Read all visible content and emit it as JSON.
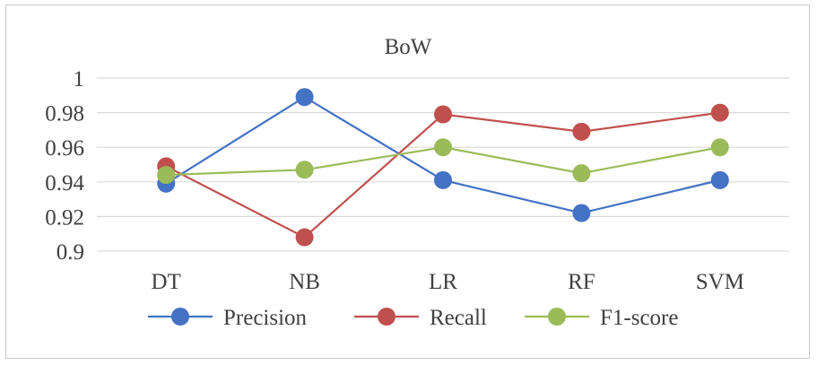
{
  "chart_data": {
    "type": "line",
    "title": "BoW",
    "categories": [
      "DT",
      "NB",
      "LR",
      "RF",
      "SVM"
    ],
    "ylim": [
      0.9,
      1
    ],
    "yticks": [
      0.9,
      0.92,
      0.94,
      0.96,
      0.98,
      1
    ],
    "ytick_labels": [
      "0.9",
      "0.92",
      "0.94",
      "0.96",
      "0.98",
      "1"
    ],
    "grid": true,
    "legend_position": "bottom",
    "series": [
      {
        "name": "Precision",
        "values": [
          0.939,
          0.989,
          0.941,
          0.922,
          0.941
        ],
        "color": "#4472C4"
      },
      {
        "name": "Recall",
        "values": [
          0.949,
          0.908,
          0.979,
          0.969,
          0.98
        ],
        "color": "#C0504D"
      },
      {
        "name": "F1-score",
        "values": [
          0.944,
          0.947,
          0.96,
          0.945,
          0.96
        ],
        "color": "#9BBB59"
      }
    ]
  }
}
